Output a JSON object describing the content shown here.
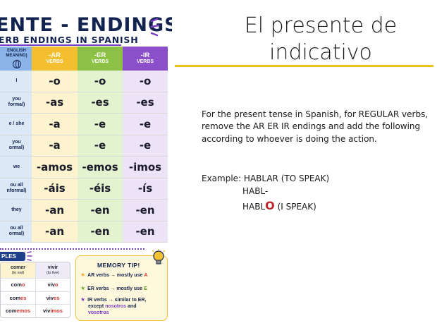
{
  "poster": {
    "title": "ENTE - ENDINGS",
    "subtitle": "ERB ENDINGS IN SPANISH",
    "header": {
      "pronoun": [
        "ENGLISH",
        "MEANING)"
      ],
      "ar": [
        "-AR",
        "VERBS"
      ],
      "er": [
        "-ER",
        "VERBS"
      ],
      "ir": [
        "-IR",
        "VERBS"
      ]
    },
    "rows": [
      {
        "pronoun": [
          "I"
        ],
        "ar": "-o",
        "er": "-o",
        "ir": "-o"
      },
      {
        "pronoun": [
          "you",
          "formal)"
        ],
        "ar": "-as",
        "er": "-es",
        "ir": "-es"
      },
      {
        "pronoun": [
          "e / she"
        ],
        "ar": "-a",
        "er": "-e",
        "ir": "-e"
      },
      {
        "pronoun": [
          "you",
          "ormal)"
        ],
        "ar": "-a",
        "er": "-e",
        "ir": "-e"
      },
      {
        "pronoun": [
          "we"
        ],
        "ar": "-amos",
        "er": "-emos",
        "ir": "-imos"
      },
      {
        "pronoun": [
          "ou all",
          "nformal)"
        ],
        "ar": "-áis",
        "er": "-éis",
        "ir": "-ís"
      },
      {
        "pronoun": [
          "they"
        ],
        "ar": "-an",
        "er": "-en",
        "ir": "-en"
      },
      {
        "pronoun": [
          "ou all",
          "ormal)"
        ],
        "ar": "-an",
        "er": "-en",
        "ir": "-en"
      }
    ],
    "examples_label": "PLES",
    "examples": {
      "head": [
        {
          "verb": "comer",
          "meaning": "(to eat)"
        },
        {
          "verb": "vivir",
          "meaning": "(to live)"
        }
      ],
      "rows": [
        [
          {
            "stem": "com",
            "end": "o"
          },
          {
            "stem": "viv",
            "end": "o"
          }
        ],
        [
          {
            "stem": "com",
            "end": "es"
          },
          {
            "stem": "viv",
            "end": "es"
          }
        ],
        [
          {
            "stem": "com",
            "end": "emos"
          },
          {
            "stem": "viv",
            "end": "imos"
          }
        ]
      ]
    },
    "memory_tip": {
      "title": "MEMORY TIP!",
      "ar_pre": "AR verbs → mostly use ",
      "ar_letter": "A",
      "er_pre": "ER verbs → mostly use ",
      "er_letter": "E",
      "ir_l1": "IR verbs → similar to ER,",
      "ir_l2": "except ",
      "ir_l2b": "nosotros",
      "ir_l2c": " and",
      "ir_l3": "vosotros"
    }
  },
  "slide": {
    "title_line1": "El presente de",
    "title_line2": "indicativo",
    "body": "For the present tense in Spanish, for REGULAR verbs, remove the AR ER IR endings and add the following according to whoever is doing the action.",
    "example_line1": "Example: HABLAR (TO SPEAK)",
    "example_line2": "HABL-",
    "example_stem": "HABL",
    "example_ending": "O",
    "example_gloss": " (I SPEAK)"
  },
  "colors": {
    "ar": "#f4bf2e",
    "er": "#8cc146",
    "ir": "#8a4fc9",
    "navy": "#13234f",
    "accent_rule": "#f0c020",
    "highlight_red": "#c0262d"
  }
}
